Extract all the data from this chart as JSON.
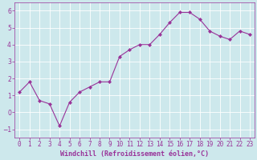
{
  "x": [
    0,
    1,
    2,
    3,
    4,
    5,
    6,
    7,
    8,
    9,
    10,
    11,
    12,
    13,
    14,
    15,
    16,
    17,
    18,
    19,
    20,
    21,
    22,
    23
  ],
  "y": [
    1.2,
    1.8,
    0.7,
    0.5,
    -0.8,
    0.6,
    1.2,
    1.5,
    1.8,
    1.8,
    3.3,
    3.7,
    4.0,
    4.0,
    4.6,
    5.3,
    5.9,
    5.9,
    5.5,
    4.8,
    4.5,
    4.3,
    4.8,
    4.6
  ],
  "line_color": "#993399",
  "marker": "D",
  "marker_size": 2,
  "linewidth": 0.8,
  "xlabel": "Windchill (Refroidissement éolien,°C)",
  "xlabel_fontsize": 6,
  "xlabel_color": "#993399",
  "xlabel_bold": true,
  "ylim": [
    -1.5,
    6.5
  ],
  "xlim": [
    -0.5,
    23.5
  ],
  "yticks": [
    -1,
    0,
    1,
    2,
    3,
    4,
    5,
    6
  ],
  "xtick_labels": [
    "0",
    "1",
    "2",
    "3",
    "4",
    "5",
    "6",
    "7",
    "8",
    "9",
    "10",
    "11",
    "12",
    "13",
    "14",
    "15",
    "16",
    "17",
    "18",
    "19",
    "20",
    "21",
    "22",
    "23"
  ],
  "tick_fontsize": 5.5,
  "tick_color": "#993399",
  "background_color": "#cde8ec",
  "grid_color": "#b0d8de",
  "spine_color": "#993399",
  "border_color": "#808080"
}
